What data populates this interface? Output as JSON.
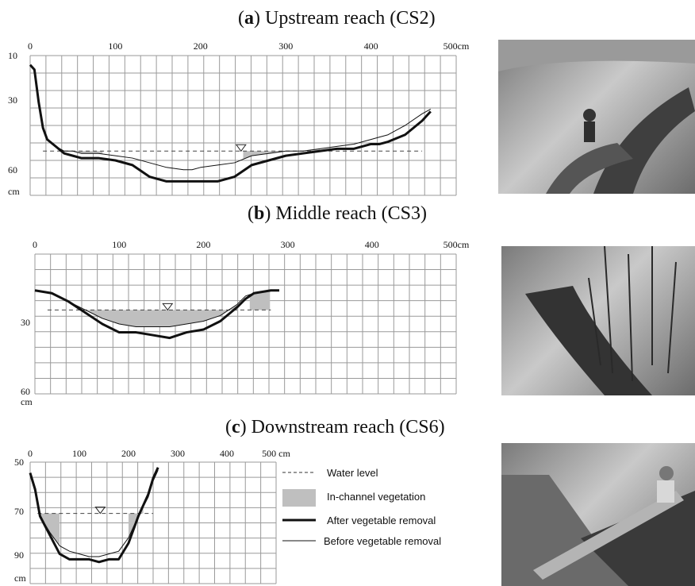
{
  "panels": [
    {
      "letter": "a",
      "title": "Upstream reach (CS2)"
    },
    {
      "letter": "b",
      "title": "Middle reach (CS3)"
    },
    {
      "letter": "c",
      "title": "Downstream reach (CS6)"
    }
  ],
  "legend": {
    "water": "Water level",
    "veg": "In-channel vegetation",
    "after": "After vegetable removal",
    "before": "Before vegetable removal"
  },
  "chart_data": [
    {
      "type": "line",
      "title": "(a) Upstream reach (CS2)",
      "x_unit": "cm",
      "y_unit": "cm",
      "x_ticks": [
        "0",
        "100",
        "200",
        "300",
        "400",
        "500cm"
      ],
      "y_ticks": [
        "10",
        "30",
        "60",
        "cm"
      ],
      "xlim": [
        0,
        500
      ],
      "ylim": [
        10,
        70
      ],
      "y_inverted": true,
      "water_level": 51,
      "series": [
        {
          "name": "After vegetable removal",
          "x": [
            0,
            5,
            10,
            15,
            20,
            30,
            40,
            50,
            60,
            80,
            100,
            120,
            140,
            160,
            180,
            190,
            200,
            220,
            240,
            260,
            280,
            300,
            320,
            340,
            360,
            380,
            400,
            410,
            420,
            440,
            460,
            470
          ],
          "y": [
            14,
            16,
            30,
            41,
            46,
            49,
            52,
            53,
            54,
            54,
            55,
            57,
            62,
            64,
            64,
            64,
            64,
            64,
            62,
            57,
            55,
            53,
            52,
            51,
            50,
            50,
            48,
            48,
            47,
            44,
            38,
            34
          ]
        },
        {
          "name": "Before vegetable removal",
          "x": [
            0,
            5,
            10,
            15,
            20,
            30,
            40,
            50,
            60,
            80,
            100,
            120,
            140,
            160,
            180,
            190,
            200,
            220,
            240,
            260,
            280,
            300,
            320,
            340,
            360,
            380,
            400,
            410,
            420,
            440,
            460,
            470
          ],
          "y": [
            14,
            16,
            30,
            41,
            46,
            49,
            51,
            51,
            52,
            52,
            53,
            54,
            56,
            58,
            59,
            59,
            58,
            57,
            56,
            53,
            52,
            51,
            51,
            50,
            49,
            48,
            46,
            45,
            44,
            40,
            35,
            33
          ]
        }
      ],
      "vegetation": [
        {
          "x": [
            35,
            85
          ]
        },
        {
          "x": [
            250,
            340
          ]
        }
      ]
    },
    {
      "type": "line",
      "title": "(b) Middle reach (CS3)",
      "x_unit": "cm",
      "y_unit": "cm",
      "x_ticks": [
        "0",
        "100",
        "200",
        "300",
        "400",
        "500cm"
      ],
      "y_ticks": [
        "30",
        "60",
        "cm"
      ],
      "xlim": [
        0,
        500
      ],
      "ylim": [
        10,
        60
      ],
      "y_inverted": true,
      "water_level": 30,
      "series": [
        {
          "name": "After vegetable removal",
          "x": [
            0,
            20,
            40,
            60,
            80,
            100,
            120,
            140,
            160,
            180,
            200,
            220,
            240,
            250,
            260,
            280,
            290
          ],
          "y": [
            23,
            24,
            27,
            31,
            35,
            38,
            38,
            39,
            40,
            38,
            37,
            34,
            29,
            26,
            24,
            23,
            23
          ]
        },
        {
          "name": "Before vegetable removal",
          "x": [
            0,
            20,
            40,
            60,
            80,
            100,
            120,
            140,
            160,
            180,
            200,
            220,
            240,
            250,
            260,
            280,
            290
          ],
          "y": [
            23,
            24,
            27,
            30,
            33,
            35,
            36,
            36,
            36,
            35,
            34,
            32,
            28,
            25,
            24,
            23,
            23
          ]
        }
      ],
      "vegetation": [
        {
          "x": [
            50,
            240
          ]
        },
        {
          "x": [
            255,
            280
          ]
        }
      ]
    },
    {
      "type": "line",
      "title": "(c) Downstream reach (CS6)",
      "x_unit": "cm",
      "y_unit": "cm",
      "x_ticks": [
        "0",
        "100",
        "200",
        "300",
        "400",
        "500 cm"
      ],
      "y_ticks": [
        "50",
        "70",
        "90",
        "cm"
      ],
      "xlim": [
        0,
        500
      ],
      "ylim": [
        50,
        95
      ],
      "y_inverted": true,
      "water_level": 69,
      "series": [
        {
          "name": "After vegetable removal",
          "x": [
            0,
            10,
            20,
            40,
            60,
            80,
            100,
            120,
            140,
            160,
            180,
            200,
            220,
            240,
            250,
            260
          ],
          "y": [
            54,
            60,
            70,
            77,
            84,
            86,
            86,
            86,
            87,
            86,
            86,
            80,
            70,
            62,
            56,
            52
          ]
        },
        {
          "name": "Before vegetable removal",
          "x": [
            0,
            10,
            20,
            40,
            60,
            80,
            100,
            120,
            140,
            160,
            180,
            200,
            220,
            240,
            250,
            260
          ],
          "y": [
            55,
            61,
            70,
            76,
            81,
            83,
            84,
            85,
            85,
            84,
            83,
            78,
            70,
            63,
            57,
            53
          ]
        }
      ],
      "vegetation": [
        {
          "x": [
            20,
            60
          ]
        },
        {
          "x": [
            200,
            230
          ]
        }
      ]
    }
  ]
}
